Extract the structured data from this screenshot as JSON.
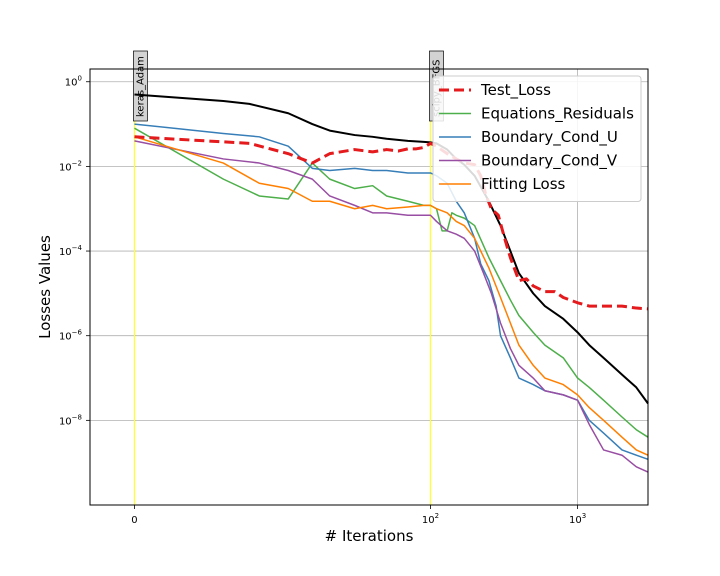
{
  "chart_data": {
    "type": "line",
    "title": "",
    "xlabel": "# Iterations",
    "ylabel": "Losses Values",
    "x_scale": "symlog",
    "y_scale": "log",
    "xlim": [
      -1,
      3000
    ],
    "ylim": [
      1e-10,
      2
    ],
    "x_ticks": [
      {
        "value": 0,
        "label": "0"
      },
      {
        "value": 100,
        "label": "10^2"
      },
      {
        "value": 1000,
        "label": "10^3"
      }
    ],
    "y_ticks": [
      {
        "exp": 0,
        "label": "10^0"
      },
      {
        "exp": -2,
        "label": "10^-2"
      },
      {
        "exp": -4,
        "label": "10^-4"
      },
      {
        "exp": -6,
        "label": "10^-6"
      },
      {
        "exp": -8,
        "label": "10^-8"
      }
    ],
    "grid": true,
    "legend_position": "top-right",
    "markers": [
      {
        "label": "keras_Adam",
        "x": 0,
        "color": "#ffff33"
      },
      {
        "label": "scipy_BFGS",
        "x": 100,
        "color": "#ffff33"
      }
    ],
    "series": [
      {
        "name": "Test_Loss",
        "color": "#e41a1c",
        "dashed": true,
        "in_legend": true,
        "points": [
          [
            0,
            0.05
          ],
          [
            5,
            0.035
          ],
          [
            10,
            0.02
          ],
          [
            15,
            0.012
          ],
          [
            20,
            0.02
          ],
          [
            30,
            0.025
          ],
          [
            40,
            0.022
          ],
          [
            50,
            0.025
          ],
          [
            60,
            0.023
          ],
          [
            70,
            0.026
          ],
          [
            80,
            0.026
          ],
          [
            90,
            0.028
          ],
          [
            100,
            0.035
          ],
          [
            110,
            0.03
          ],
          [
            130,
            0.02
          ],
          [
            150,
            0.015
          ],
          [
            170,
            0.012
          ],
          [
            200,
            0.011
          ],
          [
            220,
            0.006
          ],
          [
            240,
            0.002
          ],
          [
            260,
            0.001
          ],
          [
            290,
            0.0007
          ],
          [
            320,
            0.0002
          ],
          [
            350,
            7e-05
          ],
          [
            400,
            2e-05
          ],
          [
            450,
            2.2e-05
          ],
          [
            500,
            1.5e-05
          ],
          [
            600,
            1.1e-05
          ],
          [
            700,
            1.1e-05
          ],
          [
            800,
            8e-06
          ],
          [
            1000,
            6e-06
          ],
          [
            1200,
            5e-06
          ],
          [
            1500,
            5e-06
          ],
          [
            2000,
            5e-06
          ],
          [
            2500,
            4.5e-06
          ],
          [
            3000,
            4.3e-06
          ]
        ]
      },
      {
        "name": "",
        "color": "#000000",
        "dashed": false,
        "in_legend": false,
        "points": [
          [
            0,
            0.5
          ],
          [
            3,
            0.35
          ],
          [
            5,
            0.3
          ],
          [
            10,
            0.18
          ],
          [
            15,
            0.1
          ],
          [
            20,
            0.07
          ],
          [
            30,
            0.055
          ],
          [
            40,
            0.05
          ],
          [
            50,
            0.045
          ],
          [
            70,
            0.04
          ],
          [
            90,
            0.038
          ],
          [
            100,
            0.037
          ],
          [
            110,
            0.035
          ],
          [
            130,
            0.025
          ],
          [
            150,
            0.015
          ],
          [
            170,
            0.011
          ],
          [
            200,
            0.006
          ],
          [
            250,
            0.0015
          ],
          [
            300,
            0.0004
          ],
          [
            350,
            0.0001
          ],
          [
            400,
            3e-05
          ],
          [
            500,
            1e-05
          ],
          [
            600,
            5e-06
          ],
          [
            800,
            2.5e-06
          ],
          [
            1000,
            1.2e-06
          ],
          [
            1200,
            6e-07
          ],
          [
            1500,
            3e-07
          ],
          [
            2000,
            1.2e-07
          ],
          [
            2500,
            6e-08
          ],
          [
            3000,
            2.5e-08
          ]
        ]
      },
      {
        "name": "Equations_Residuals",
        "color": "#4daf4a",
        "dashed": false,
        "in_legend": true,
        "points": [
          [
            0,
            0.08
          ],
          [
            3,
            0.005
          ],
          [
            6,
            0.002
          ],
          [
            10,
            0.0017
          ],
          [
            15,
            0.012
          ],
          [
            20,
            0.005
          ],
          [
            30,
            0.003
          ],
          [
            40,
            0.0035
          ],
          [
            50,
            0.002
          ],
          [
            70,
            0.0015
          ],
          [
            90,
            0.0012
          ],
          [
            100,
            0.0012
          ],
          [
            110,
            0.001
          ],
          [
            120,
            0.0003
          ],
          [
            130,
            0.0003
          ],
          [
            140,
            0.0008
          ],
          [
            150,
            0.0007
          ],
          [
            170,
            0.0006
          ],
          [
            200,
            0.0004
          ],
          [
            250,
            7e-05
          ],
          [
            300,
            2e-05
          ],
          [
            350,
            7e-06
          ],
          [
            400,
            3e-06
          ],
          [
            500,
            1.2e-06
          ],
          [
            600,
            6e-07
          ],
          [
            800,
            3e-07
          ],
          [
            1000,
            1e-07
          ],
          [
            1200,
            6e-08
          ],
          [
            1500,
            3e-08
          ],
          [
            2000,
            1.2e-08
          ],
          [
            2500,
            6e-09
          ],
          [
            3000,
            4e-09
          ]
        ]
      },
      {
        "name": "Boundary_Cond_U",
        "color": "#377eb8",
        "dashed": false,
        "in_legend": true,
        "points": [
          [
            0,
            0.1
          ],
          [
            3,
            0.06
          ],
          [
            6,
            0.05
          ],
          [
            10,
            0.03
          ],
          [
            15,
            0.009
          ],
          [
            20,
            0.008
          ],
          [
            30,
            0.009
          ],
          [
            40,
            0.008
          ],
          [
            50,
            0.008
          ],
          [
            70,
            0.007
          ],
          [
            90,
            0.007
          ],
          [
            100,
            0.007
          ],
          [
            110,
            0.006
          ],
          [
            130,
            0.004
          ],
          [
            150,
            0.0015
          ],
          [
            170,
            0.0008
          ],
          [
            200,
            0.0002
          ],
          [
            220,
            5e-05
          ],
          [
            250,
            2e-05
          ],
          [
            280,
            5e-06
          ],
          [
            300,
            1e-06
          ],
          [
            350,
            3e-07
          ],
          [
            400,
            1e-07
          ],
          [
            500,
            7e-08
          ],
          [
            600,
            5e-08
          ],
          [
            800,
            4e-08
          ],
          [
            1000,
            3e-08
          ],
          [
            1200,
            1e-08
          ],
          [
            1500,
            5e-09
          ],
          [
            2000,
            2e-09
          ],
          [
            2500,
            1.5e-09
          ],
          [
            3000,
            1.2e-09
          ]
        ]
      },
      {
        "name": "Boundary_Cond_V",
        "color": "#984ea3",
        "dashed": false,
        "in_legend": true,
        "points": [
          [
            0,
            0.04
          ],
          [
            3,
            0.015
          ],
          [
            6,
            0.012
          ],
          [
            10,
            0.008
          ],
          [
            15,
            0.005
          ],
          [
            20,
            0.002
          ],
          [
            30,
            0.0012
          ],
          [
            40,
            0.0008
          ],
          [
            50,
            0.0008
          ],
          [
            70,
            0.0007
          ],
          [
            90,
            0.0007
          ],
          [
            100,
            0.0007
          ],
          [
            110,
            0.0005
          ],
          [
            130,
            0.0003
          ],
          [
            150,
            0.00025
          ],
          [
            170,
            0.0002
          ],
          [
            200,
            0.0001
          ],
          [
            230,
            3e-05
          ],
          [
            260,
            1e-05
          ],
          [
            300,
            2e-06
          ],
          [
            350,
            5e-07
          ],
          [
            400,
            2e-07
          ],
          [
            500,
            1e-07
          ],
          [
            600,
            5e-08
          ],
          [
            800,
            4e-08
          ],
          [
            1000,
            3e-08
          ],
          [
            1200,
            8e-09
          ],
          [
            1500,
            2e-09
          ],
          [
            2000,
            1.5e-09
          ],
          [
            2500,
            8e-10
          ],
          [
            3000,
            6e-10
          ]
        ]
      },
      {
        "name": "Fitting Loss",
        "color": "#ff7f00",
        "dashed": false,
        "in_legend": true,
        "points": [
          [
            0,
            0.05
          ],
          [
            3,
            0.012
          ],
          [
            6,
            0.004
          ],
          [
            10,
            0.003
          ],
          [
            15,
            0.0015
          ],
          [
            20,
            0.0015
          ],
          [
            30,
            0.001
          ],
          [
            40,
            0.0012
          ],
          [
            50,
            0.001
          ],
          [
            70,
            0.0011
          ],
          [
            90,
            0.0012
          ],
          [
            100,
            0.0012
          ],
          [
            110,
            0.001
          ],
          [
            130,
            0.0008
          ],
          [
            150,
            0.0005
          ],
          [
            170,
            0.0004
          ],
          [
            200,
            0.0002
          ],
          [
            250,
            4e-05
          ],
          [
            300,
            8e-06
          ],
          [
            350,
            2e-06
          ],
          [
            400,
            6e-07
          ],
          [
            500,
            2e-07
          ],
          [
            600,
            1e-07
          ],
          [
            800,
            7e-08
          ],
          [
            1000,
            4e-08
          ],
          [
            1200,
            2e-08
          ],
          [
            1500,
            1e-08
          ],
          [
            2000,
            4e-09
          ],
          [
            2500,
            2e-09
          ],
          [
            3000,
            1.5e-09
          ]
        ]
      }
    ]
  }
}
